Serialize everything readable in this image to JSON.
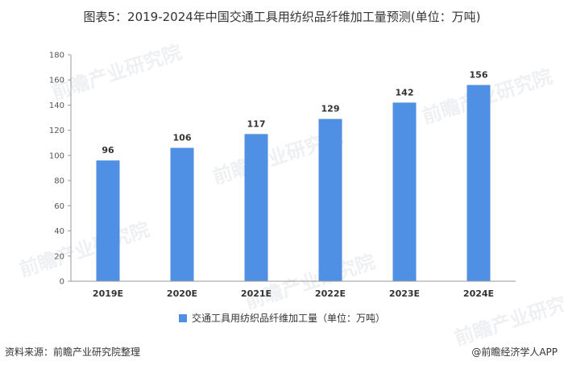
{
  "title": "图表5：2019-2024年中国交通工具用纺织品纤维加工量预测(单位：万吨)",
  "legend_label": "交通工具用纺织品纤维加工量（单位：万吨）",
  "source": "资料来源：前瞻产业研究院整理",
  "brand": "@前瞻经济学人APP",
  "watermark": "前瞻产业研究院",
  "colors": {
    "bar": "#4f8fe4",
    "axis": "#999999"
  },
  "chart_data": {
    "type": "bar",
    "categories": [
      "2019E",
      "2020E",
      "2021E",
      "2022E",
      "2023E",
      "2024E"
    ],
    "series": [
      {
        "name": "交通工具用纺织品纤维加工量（单位：万吨）",
        "values": [
          96,
          106,
          117,
          129,
          142,
          156
        ]
      }
    ],
    "ylim": [
      0,
      180
    ],
    "yticks": [
      0,
      20,
      40,
      60,
      80,
      100,
      120,
      140,
      160,
      180
    ],
    "grid": false,
    "legend_position": "bottom"
  }
}
